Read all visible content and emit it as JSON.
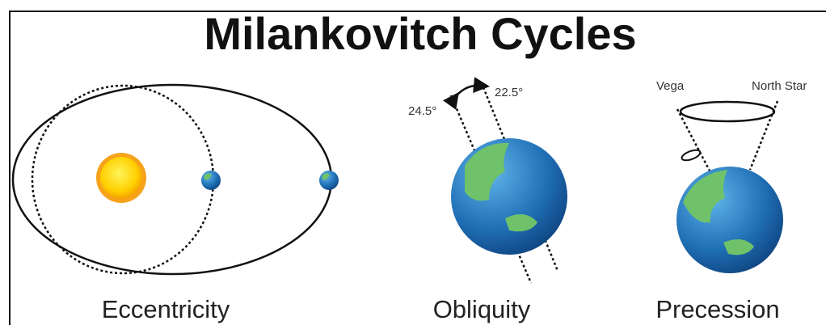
{
  "title": "Milankovitch Cycles",
  "panels": [
    {
      "label": "Eccentricity"
    },
    {
      "label": "Obliquity",
      "annotations": [
        "24.5°",
        "22.5°"
      ]
    },
    {
      "label": "Precession",
      "annotations": [
        "Vega",
        "North Star"
      ]
    }
  ]
}
